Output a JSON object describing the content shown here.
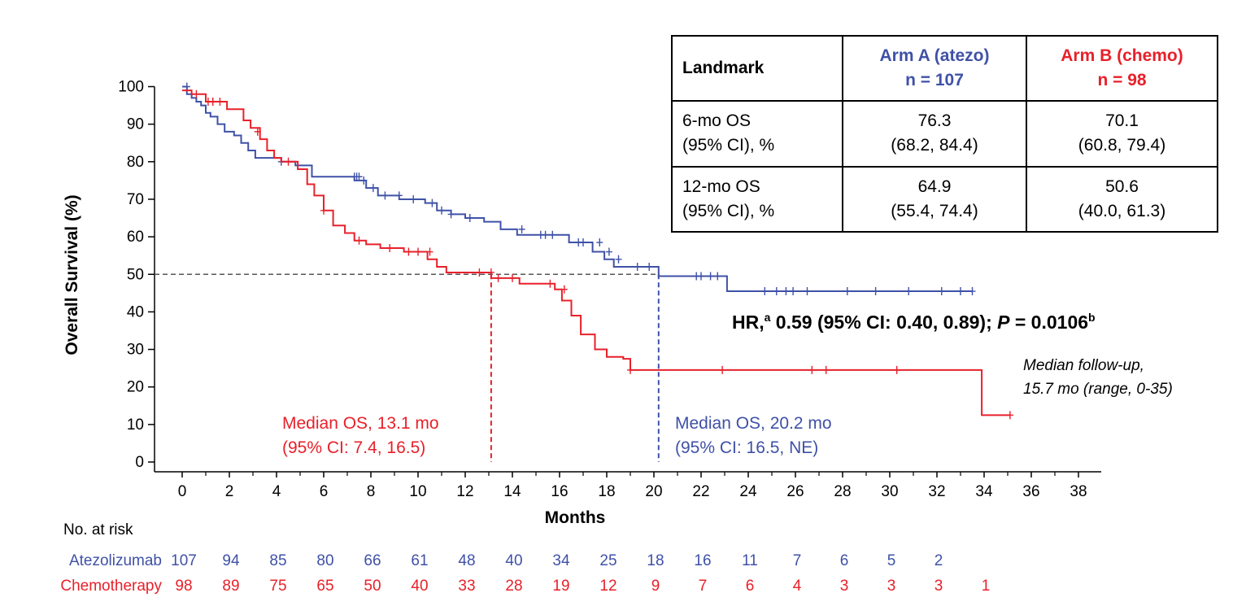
{
  "colors": {
    "arm_a": "#3f51a7",
    "arm_b": "#e8202a",
    "median_line": "#555555"
  },
  "chart_data": {
    "type": "line",
    "title": "",
    "xlabel": "Months",
    "ylabel": "Overall Survival (%)",
    "xlim": [
      0,
      38
    ],
    "ylim": [
      0,
      100
    ],
    "x_ticks": [
      "0",
      "2",
      "4",
      "6",
      "8",
      "10",
      "12",
      "14",
      "16",
      "18",
      "20",
      "22",
      "24",
      "26",
      "28",
      "30",
      "32",
      "34",
      "36",
      "38"
    ],
    "y_ticks": [
      "0",
      "10",
      "20",
      "30",
      "40",
      "50",
      "60",
      "70",
      "80",
      "90",
      "100"
    ],
    "series": [
      {
        "name": "Atezolizumab",
        "step_x": [
          0,
          0.2,
          0.4,
          0.6,
          0.8,
          1.0,
          1.2,
          1.5,
          1.8,
          2.2,
          2.5,
          2.8,
          3.1,
          3.5,
          4.2,
          4.8,
          5.5,
          7.3,
          7.8,
          8.3,
          9.2,
          10.3,
          10.8,
          11.4,
          12.0,
          12.8,
          13.5,
          14.2,
          16.4,
          17.4,
          17.9,
          18.3,
          19.6,
          20.2,
          23.1,
          33.5
        ],
        "step_y": [
          100,
          98,
          97,
          96,
          95,
          93,
          92,
          90,
          88,
          87,
          85,
          83,
          81,
          81,
          80,
          79,
          76,
          75,
          73,
          71,
          70,
          69,
          67,
          66,
          65,
          64,
          62,
          60.5,
          58.5,
          56,
          54,
          52,
          52,
          49.5,
          45.5,
          45.5
        ],
        "censor_x": [
          0.2,
          1.3,
          4.2,
          7.3,
          7.4,
          7.5,
          7.7,
          8.1,
          8.6,
          9.2,
          9.8,
          10.6,
          11.0,
          11.4,
          12.2,
          14.4,
          15.2,
          15.4,
          15.7,
          16.8,
          17.0,
          17.7,
          18.1,
          18.5,
          19.3,
          19.8,
          21.8,
          22.0,
          22.4,
          22.7,
          24.7,
          25.2,
          25.6,
          25.9,
          26.5,
          28.2,
          29.4,
          30.8,
          32.2,
          33.0,
          33.5
        ],
        "censor_y": [
          100,
          96,
          80,
          76,
          76,
          76,
          75,
          73,
          71,
          71,
          70,
          69,
          67,
          66,
          65,
          62,
          60.5,
          60.5,
          60.5,
          58.5,
          58.5,
          58.5,
          56,
          54,
          52,
          52,
          49.5,
          49.5,
          49.5,
          49.5,
          45.5,
          45.5,
          45.5,
          45.5,
          45.5,
          45.5,
          45.5,
          45.5,
          45.5,
          45.5,
          45.5
        ]
      },
      {
        "name": "Chemotherapy",
        "step_x": [
          0,
          0.4,
          1.0,
          1.9,
          2.6,
          2.9,
          3.3,
          3.6,
          3.9,
          4.2,
          4.9,
          5.3,
          5.6,
          6.0,
          6.4,
          6.9,
          7.3,
          7.8,
          8.4,
          9.4,
          10.4,
          10.8,
          11.2,
          13.1,
          14.3,
          15.8,
          16.1,
          16.5,
          16.9,
          17.5,
          18.0,
          18.7,
          19.0,
          33.9,
          35.1
        ],
        "step_y": [
          99,
          98,
          96,
          94,
          91,
          89,
          86,
          83,
          81,
          80,
          78,
          74,
          71,
          67,
          63,
          61,
          59,
          58,
          57,
          56,
          54,
          52,
          50.5,
          49,
          47.5,
          46,
          43,
          39,
          34,
          30,
          28,
          27.5,
          24.5,
          12.5,
          12.5
        ],
        "censor_x": [
          0.6,
          1.1,
          1.3,
          1.6,
          3.2,
          4.5,
          6.0,
          7.5,
          8.8,
          9.6,
          10.0,
          10.5,
          12.6,
          13.1,
          13.4,
          14.0,
          15.6,
          16.2,
          19.0,
          22.9,
          26.7,
          27.3,
          30.3,
          35.1
        ],
        "censor_y": [
          98,
          96,
          96,
          96,
          88,
          80,
          67,
          59,
          57,
          56,
          56,
          56,
          50.5,
          50.5,
          49,
          49,
          47.5,
          46,
          24.5,
          24.5,
          24.5,
          24.5,
          24.5,
          12.5
        ]
      }
    ],
    "reference_line_y": 50,
    "medians": [
      {
        "name": "Chemotherapy",
        "x": 13.1
      },
      {
        "name": "Atezolizumab",
        "x": 20.2
      }
    ]
  },
  "table": {
    "header": {
      "landmark": "Landmark",
      "arm_a_l1": "Arm A (atezo)",
      "arm_a_l2": "n = 107",
      "arm_b_l1": "Arm B (chemo)",
      "arm_b_l2": "n = 98"
    },
    "rows": [
      {
        "label_l1": "6-mo OS",
        "label_l2": "(95% CI), %",
        "a_l1": "76.3",
        "a_l2": "(68.2, 84.4)",
        "b_l1": "70.1",
        "b_l2": "(60.8, 79.4)"
      },
      {
        "label_l1": "12-mo OS",
        "label_l2": "(95% CI), %",
        "a_l1": "64.9",
        "a_l2": "(55.4, 74.4)",
        "b_l1": "50.6",
        "b_l2": "(40.0, 61.3)"
      }
    ]
  },
  "annotations": {
    "hr_prefix": "HR,",
    "hr_sup_a": "a",
    "hr_main": " 0.59 (95% CI: 0.40, 0.89); ",
    "hr_p": "P",
    "hr_p_value": " = 0.0106",
    "hr_sup_b": "b",
    "median_b_l1": "Median OS, 13.1 mo",
    "median_b_l2": "(95% CI: 7.4, 16.5)",
    "median_a_l1": "Median OS, 20.2 mo",
    "median_a_l2": "(95% CI: 16.5, NE)",
    "followup_l1": "Median follow-up,",
    "followup_l2": "15.7 mo (range, 0-35)"
  },
  "risk_table": {
    "title": "No. at risk",
    "rows": [
      {
        "label": "Atezolizumab",
        "values": [
          "107",
          "94",
          "85",
          "80",
          "66",
          "61",
          "48",
          "40",
          "34",
          "25",
          "18",
          "16",
          "11",
          "7",
          "6",
          "5",
          "2"
        ]
      },
      {
        "label": "Chemotherapy",
        "values": [
          "98",
          "89",
          "75",
          "65",
          "50",
          "40",
          "33",
          "28",
          "19",
          "12",
          "9",
          "7",
          "6",
          "4",
          "3",
          "3",
          "3",
          "1"
        ]
      }
    ]
  }
}
